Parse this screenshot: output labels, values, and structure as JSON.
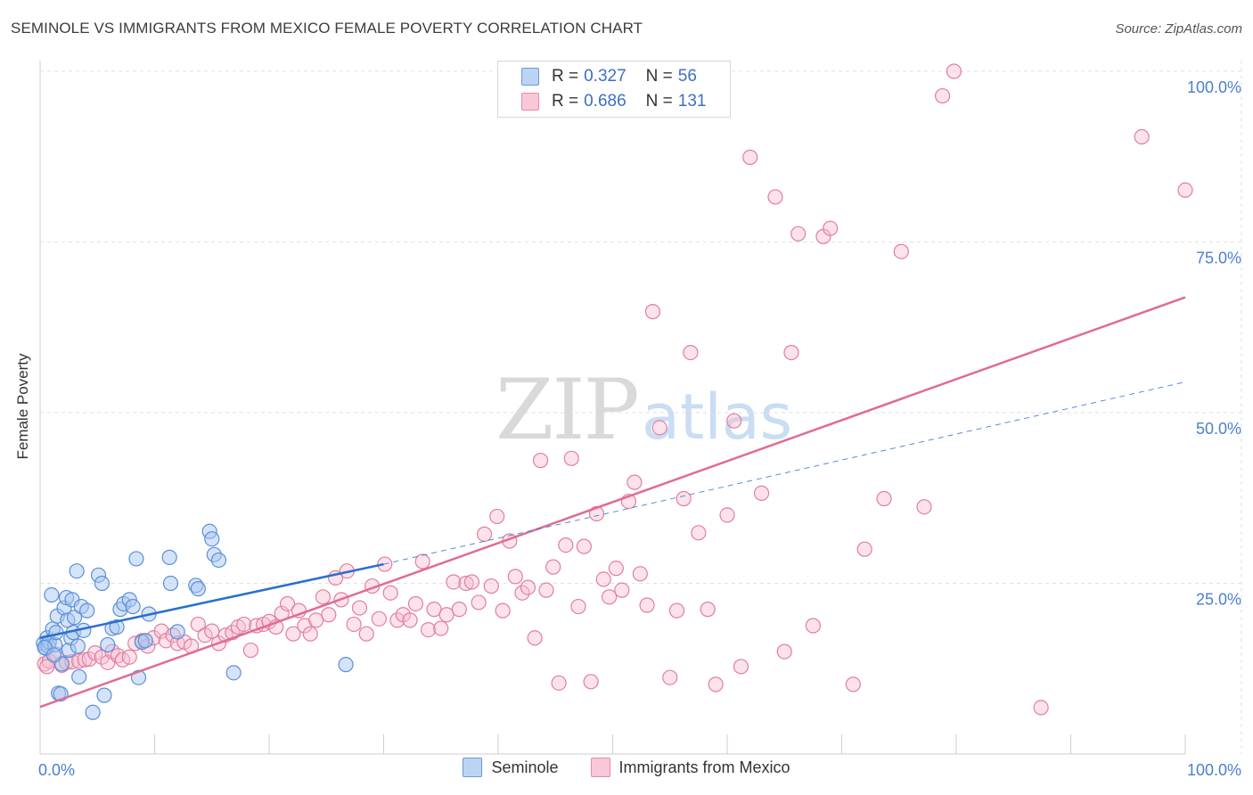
{
  "header": {
    "title": "SEMINOLE VS IMMIGRANTS FROM MEXICO FEMALE POVERTY CORRELATION CHART",
    "source": "Source: ZipAtlas.com"
  },
  "legend": {
    "rows": [
      {
        "r_label": "R =",
        "r_value": "0.327",
        "n_label": "N =",
        "n_value": "56"
      },
      {
        "r_label": "R =",
        "r_value": "0.686",
        "n_label": "N =",
        "n_value": "131"
      }
    ]
  },
  "watermark": {
    "part1": "ZIP",
    "part2": "atlas"
  },
  "colors": {
    "seminole_fill": "#aac8f0",
    "seminole_stroke": "#5b8fd8",
    "seminole_line": "#2a6fd0",
    "mexico_fill": "#f8bfd0",
    "mexico_stroke": "#e07fa0",
    "mexico_line": "#e06b94",
    "tick_label": "#4a7fd0",
    "grid": "#e2e2e2"
  },
  "chart_data": {
    "type": "scatter",
    "xlabel": "",
    "ylabel": "Female Poverty",
    "xlim": [
      0,
      100
    ],
    "ylim": [
      0,
      100
    ],
    "x_tick_labels": [
      {
        "value": 0,
        "label": "0.0%"
      },
      {
        "value": 100,
        "label": "100.0%"
      }
    ],
    "y_tick_labels": [
      {
        "value": 25,
        "label": "25.0%"
      },
      {
        "value": 50,
        "label": "50.0%"
      },
      {
        "value": 75,
        "label": "75.0%"
      },
      {
        "value": 100,
        "label": "100.0%"
      }
    ],
    "grid": true,
    "legend_position": "top-center",
    "series": [
      {
        "name": "Seminole",
        "trend": {
          "x0": 0,
          "y0": 17.0,
          "x1": 30,
          "y1": 27.8,
          "dashed_to_x": 100,
          "dashed_to_y": 54.5
        },
        "points": [
          [
            0.3,
            16.2
          ],
          [
            0.5,
            15.5
          ],
          [
            0.6,
            17.0
          ],
          [
            0.7,
            15.8
          ],
          [
            0.8,
            16.4
          ],
          [
            1.0,
            23.3
          ],
          [
            1.1,
            18.3
          ],
          [
            1.3,
            16.0
          ],
          [
            1.4,
            17.8
          ],
          [
            1.5,
            20.2
          ],
          [
            1.6,
            8.9
          ],
          [
            1.8,
            8.8
          ],
          [
            1.9,
            13.2
          ],
          [
            2.1,
            21.4
          ],
          [
            2.3,
            22.9
          ],
          [
            2.4,
            19.6
          ],
          [
            2.5,
            15.2
          ],
          [
            2.7,
            17.0
          ],
          [
            2.8,
            22.6
          ],
          [
            2.9,
            17.8
          ],
          [
            3.0,
            20.0
          ],
          [
            3.2,
            26.8
          ],
          [
            3.3,
            15.8
          ],
          [
            3.4,
            11.3
          ],
          [
            3.6,
            21.6
          ],
          [
            3.8,
            18.1
          ],
          [
            4.1,
            21.0
          ],
          [
            4.6,
            6.1
          ],
          [
            5.1,
            26.2
          ],
          [
            5.4,
            25.0
          ],
          [
            5.6,
            8.6
          ],
          [
            5.9,
            16.0
          ],
          [
            6.3,
            18.4
          ],
          [
            6.7,
            18.6
          ],
          [
            7.0,
            21.2
          ],
          [
            7.3,
            22.0
          ],
          [
            7.8,
            22.6
          ],
          [
            8.1,
            21.6
          ],
          [
            8.4,
            28.6
          ],
          [
            8.6,
            11.2
          ],
          [
            8.9,
            16.4
          ],
          [
            9.2,
            16.6
          ],
          [
            9.5,
            20.5
          ],
          [
            11.3,
            28.8
          ],
          [
            11.4,
            25.0
          ],
          [
            12.0,
            17.9
          ],
          [
            13.6,
            24.7
          ],
          [
            13.8,
            24.2
          ],
          [
            14.8,
            32.6
          ],
          [
            15.0,
            31.5
          ],
          [
            15.2,
            29.2
          ],
          [
            15.6,
            28.4
          ],
          [
            16.9,
            11.9
          ],
          [
            26.7,
            13.1
          ],
          [
            0.4,
            15.6
          ],
          [
            1.2,
            14.5
          ]
        ]
      },
      {
        "name": "Immigrants from Mexico",
        "trend": {
          "x0": 0,
          "y0": 6.9,
          "x1": 100,
          "y1": 66.9
        },
        "points": [
          [
            0.4,
            13.2
          ],
          [
            0.8,
            13.6
          ],
          [
            1.4,
            14.6
          ],
          [
            1.9,
            13.0
          ],
          [
            2.3,
            13.4
          ],
          [
            2.8,
            13.5
          ],
          [
            3.4,
            13.6
          ],
          [
            3.9,
            13.8
          ],
          [
            4.3,
            13.9
          ],
          [
            4.8,
            14.8
          ],
          [
            5.4,
            14.2
          ],
          [
            5.9,
            13.4
          ],
          [
            6.3,
            15.0
          ],
          [
            6.8,
            14.4
          ],
          [
            7.2,
            13.8
          ],
          [
            7.8,
            14.2
          ],
          [
            8.3,
            16.2
          ],
          [
            8.9,
            16.6
          ],
          [
            9.4,
            15.8
          ],
          [
            9.9,
            17.0
          ],
          [
            10.6,
            18.0
          ],
          [
            11.0,
            16.6
          ],
          [
            11.6,
            17.4
          ],
          [
            12.0,
            16.2
          ],
          [
            12.6,
            16.4
          ],
          [
            13.2,
            15.8
          ],
          [
            13.8,
            19.0
          ],
          [
            14.4,
            17.4
          ],
          [
            15.0,
            18.0
          ],
          [
            15.6,
            16.2
          ],
          [
            16.2,
            17.4
          ],
          [
            16.8,
            17.8
          ],
          [
            17.3,
            18.6
          ],
          [
            17.8,
            19.0
          ],
          [
            18.4,
            15.2
          ],
          [
            18.9,
            18.8
          ],
          [
            19.5,
            19.0
          ],
          [
            20.0,
            19.4
          ],
          [
            20.6,
            18.6
          ],
          [
            21.1,
            20.6
          ],
          [
            21.6,
            22.0
          ],
          [
            22.1,
            17.6
          ],
          [
            22.6,
            21.0
          ],
          [
            23.1,
            18.8
          ],
          [
            23.6,
            17.6
          ],
          [
            24.1,
            19.6
          ],
          [
            24.7,
            23.0
          ],
          [
            25.2,
            20.4
          ],
          [
            25.8,
            25.8
          ],
          [
            26.3,
            22.6
          ],
          [
            26.8,
            26.8
          ],
          [
            27.4,
            19.0
          ],
          [
            27.9,
            21.4
          ],
          [
            28.5,
            17.6
          ],
          [
            29.0,
            24.6
          ],
          [
            29.6,
            19.8
          ],
          [
            30.1,
            27.8
          ],
          [
            30.6,
            23.6
          ],
          [
            31.2,
            19.6
          ],
          [
            31.7,
            20.4
          ],
          [
            32.3,
            19.6
          ],
          [
            32.8,
            22.0
          ],
          [
            33.4,
            28.2
          ],
          [
            33.9,
            18.2
          ],
          [
            34.4,
            21.2
          ],
          [
            35.0,
            18.4
          ],
          [
            35.5,
            20.4
          ],
          [
            36.1,
            25.2
          ],
          [
            36.6,
            21.2
          ],
          [
            37.2,
            25.0
          ],
          [
            37.7,
            25.2
          ],
          [
            38.3,
            22.2
          ],
          [
            38.8,
            32.2
          ],
          [
            39.4,
            24.6
          ],
          [
            39.9,
            34.8
          ],
          [
            40.4,
            21.0
          ],
          [
            41.0,
            31.2
          ],
          [
            41.5,
            26.0
          ],
          [
            42.1,
            23.6
          ],
          [
            42.6,
            24.4
          ],
          [
            43.2,
            17.0
          ],
          [
            43.7,
            43.0
          ],
          [
            44.2,
            24.0
          ],
          [
            44.8,
            27.4
          ],
          [
            45.3,
            10.4
          ],
          [
            45.9,
            30.6
          ],
          [
            46.4,
            43.3
          ],
          [
            47.0,
            21.6
          ],
          [
            47.5,
            30.4
          ],
          [
            48.1,
            10.6
          ],
          [
            48.6,
            35.2
          ],
          [
            49.2,
            25.6
          ],
          [
            49.7,
            23.0
          ],
          [
            50.3,
            27.2
          ],
          [
            50.8,
            24.0
          ],
          [
            51.4,
            37.0
          ],
          [
            51.9,
            39.8
          ],
          [
            52.4,
            26.4
          ],
          [
            53.0,
            21.8
          ],
          [
            53.5,
            64.8
          ],
          [
            54.1,
            47.8
          ],
          [
            55.0,
            11.2
          ],
          [
            55.6,
            21.0
          ],
          [
            56.2,
            37.4
          ],
          [
            56.8,
            58.8
          ],
          [
            57.5,
            32.4
          ],
          [
            58.3,
            21.2
          ],
          [
            59.0,
            10.2
          ],
          [
            60.0,
            35.0
          ],
          [
            60.6,
            48.8
          ],
          [
            61.2,
            12.8
          ],
          [
            62.0,
            87.4
          ],
          [
            63.0,
            38.2
          ],
          [
            64.2,
            81.6
          ],
          [
            65.0,
            15.0
          ],
          [
            65.6,
            58.8
          ],
          [
            66.2,
            76.2
          ],
          [
            67.5,
            18.8
          ],
          [
            68.4,
            75.8
          ],
          [
            69.0,
            77.0
          ],
          [
            71.0,
            10.2
          ],
          [
            72.0,
            30.0
          ],
          [
            73.7,
            37.4
          ],
          [
            75.2,
            73.6
          ],
          [
            77.2,
            36.2
          ],
          [
            78.8,
            96.4
          ],
          [
            79.8,
            100.0
          ],
          [
            87.4,
            6.8
          ],
          [
            96.2,
            90.4
          ],
          [
            100.0,
            82.6
          ],
          [
            0.6,
            12.8
          ]
        ]
      }
    ]
  }
}
